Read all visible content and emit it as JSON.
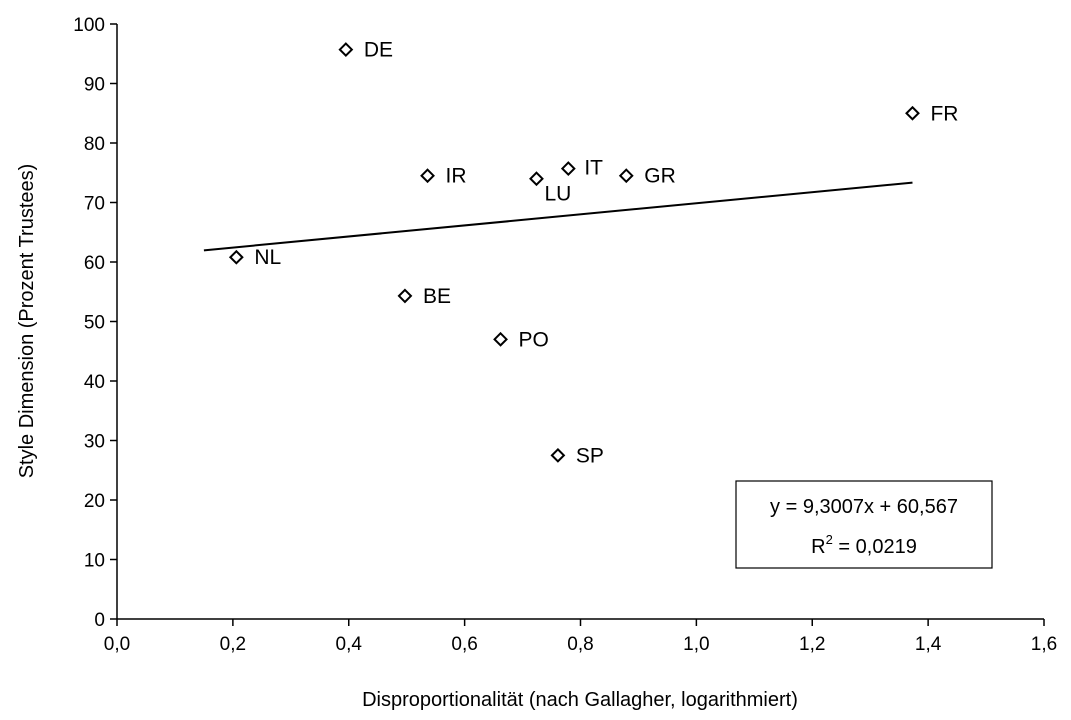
{
  "chart_data": {
    "type": "scatter",
    "title": "",
    "xlabel": "Disproportionalität (nach Gallagher, logarithmiert)",
    "ylabel": "Style Dimension (Prozent Trustees)",
    "xlim": [
      0,
      1.6
    ],
    "ylim": [
      0,
      100
    ],
    "x_ticks": [
      0,
      0.2,
      0.4,
      0.6,
      0.8,
      1.0,
      1.2,
      1.4,
      1.6
    ],
    "x_tick_labels": [
      "0,0",
      "0,2",
      "0,4",
      "0,6",
      "0,8",
      "1,0",
      "1,2",
      "1,4",
      "1,6"
    ],
    "y_ticks": [
      0,
      10,
      20,
      30,
      40,
      50,
      60,
      70,
      80,
      90,
      100
    ],
    "y_tick_labels": [
      "0",
      "10",
      "20",
      "30",
      "40",
      "50",
      "60",
      "70",
      "80",
      "90",
      "100"
    ],
    "grid": false,
    "marker": "diamond",
    "points": [
      {
        "label": "DE",
        "x": 0.395,
        "y": 95.7
      },
      {
        "label": "FR",
        "x": 1.373,
        "y": 85.0
      },
      {
        "label": "IR",
        "x": 0.536,
        "y": 74.5
      },
      {
        "label": "LU",
        "x": 0.724,
        "y": 74.0
      },
      {
        "label": "IT",
        "x": 0.779,
        "y": 75.7
      },
      {
        "label": "GR",
        "x": 0.879,
        "y": 74.5
      },
      {
        "label": "NL",
        "x": 0.206,
        "y": 60.8
      },
      {
        "label": "BE",
        "x": 0.497,
        "y": 54.3
      },
      {
        "label": "PO",
        "x": 0.662,
        "y": 47.0
      },
      {
        "label": "SP",
        "x": 0.761,
        "y": 27.5
      }
    ],
    "trendline": {
      "type": "linear",
      "slope": 9.3007,
      "intercept": 60.567,
      "x_range": [
        0.15,
        1.373
      ],
      "equation_text": "y = 9,3007x + 60,567",
      "r2_prefix": "R",
      "r2_superscript": "2",
      "r2_suffix": " = 0,0219"
    }
  }
}
